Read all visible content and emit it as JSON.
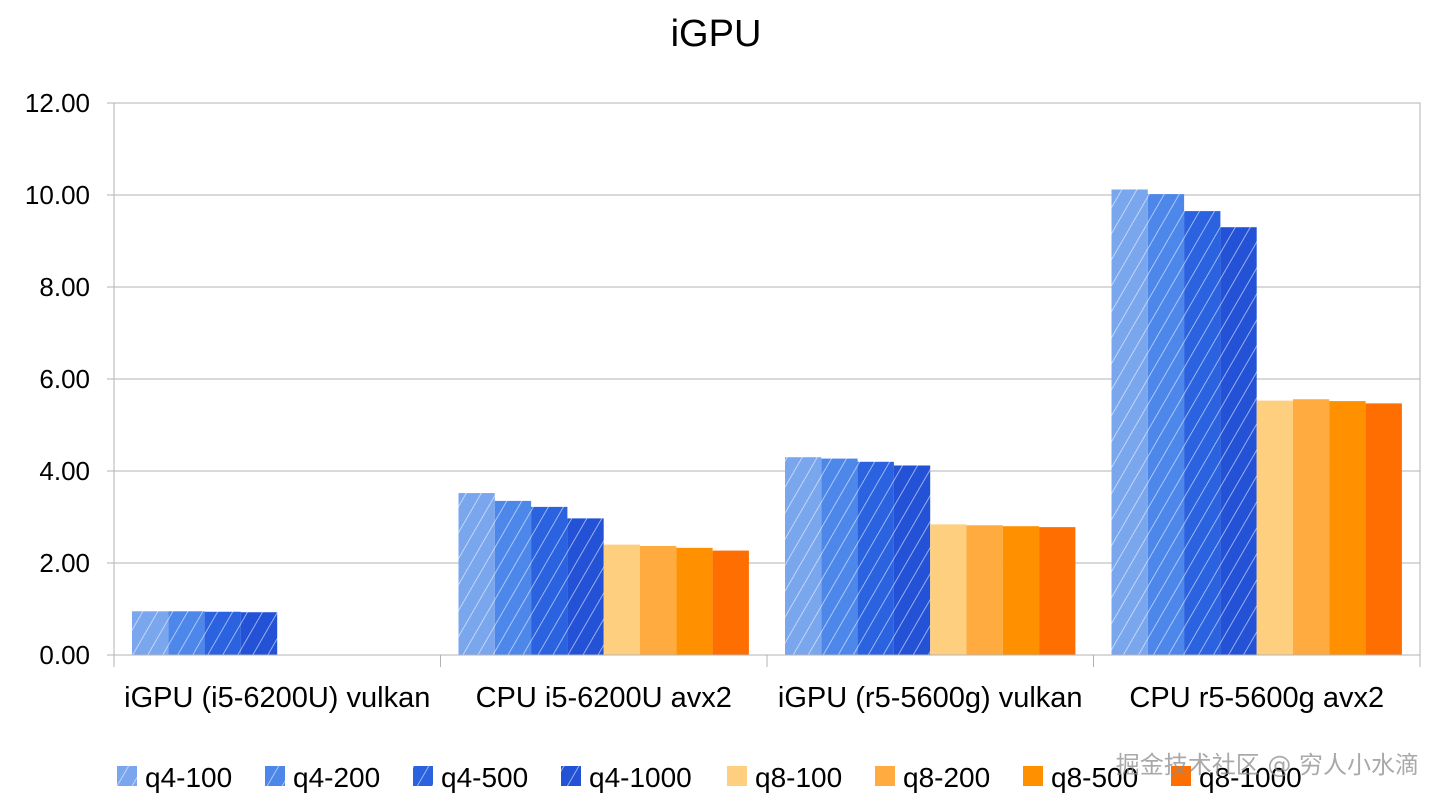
{
  "chart_data": {
    "type": "bar",
    "title": "iGPU",
    "xlabel": "",
    "ylabel": "",
    "ylim": [
      0,
      12
    ],
    "ytick_step": 2,
    "ytick_format": "2-decimals",
    "grid": "horizontal",
    "legend_position": "bottom",
    "categories": [
      "iGPU (i5-6200U) vulkan",
      "CPU i5-6200U avx2",
      "iGPU (r5-5600g) vulkan",
      "CPU r5-5600g avx2"
    ],
    "series": [
      {
        "name": "q4-100",
        "color": "#7aa6ee",
        "hatched": true,
        "values": [
          0.95,
          3.52,
          4.3,
          10.12
        ]
      },
      {
        "name": "q4-200",
        "color": "#4d87ea",
        "hatched": true,
        "values": [
          0.95,
          3.35,
          4.27,
          10.02
        ]
      },
      {
        "name": "q4-500",
        "color": "#2b62e0",
        "hatched": true,
        "values": [
          0.94,
          3.22,
          4.2,
          9.65
        ]
      },
      {
        "name": "q4-1000",
        "color": "#2352d6",
        "hatched": true,
        "values": [
          0.93,
          2.97,
          4.12,
          9.3
        ]
      },
      {
        "name": "q8-100",
        "color": "#ffcf80",
        "hatched": false,
        "values": [
          null,
          2.4,
          2.84,
          5.53
        ]
      },
      {
        "name": "q8-200",
        "color": "#ffab40",
        "hatched": false,
        "values": [
          null,
          2.37,
          2.82,
          5.56
        ]
      },
      {
        "name": "q8-500",
        "color": "#ff9000",
        "hatched": false,
        "values": [
          null,
          2.33,
          2.8,
          5.52
        ]
      },
      {
        "name": "q8-1000",
        "color": "#ff6e00",
        "hatched": false,
        "values": [
          null,
          2.27,
          2.78,
          5.47
        ]
      }
    ]
  },
  "watermark": "掘金技术社区 @ 穷人小水滴"
}
